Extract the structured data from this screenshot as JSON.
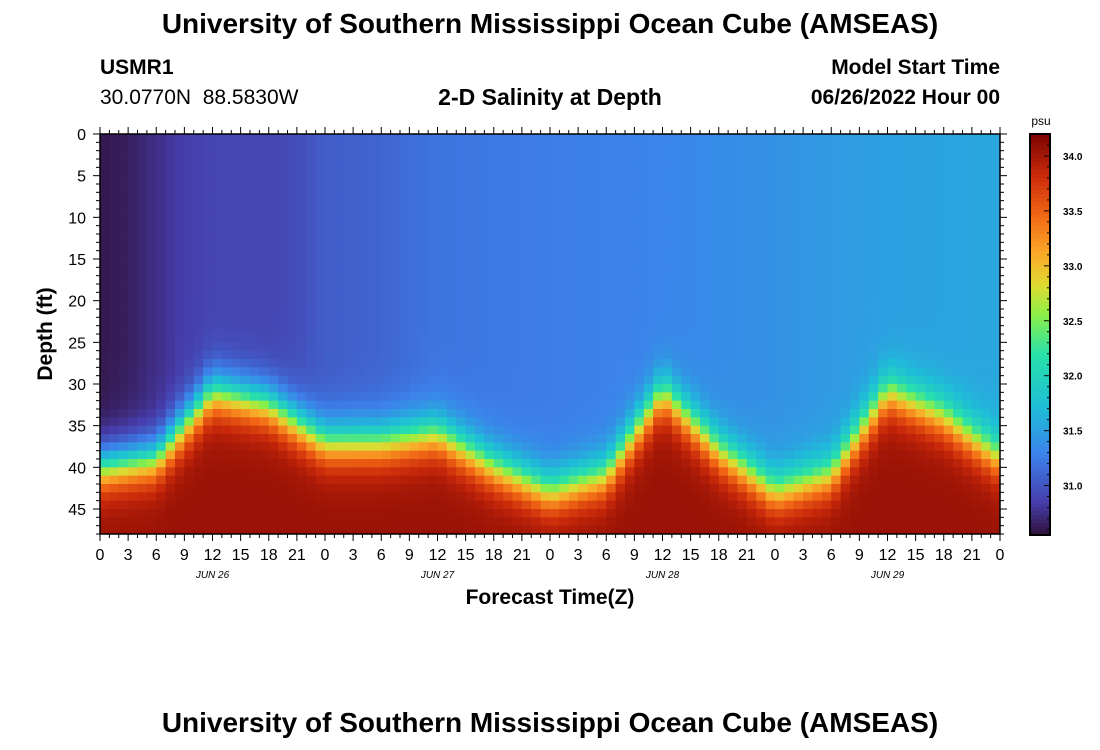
{
  "header": {
    "title": "University of Southern Mississippi Ocean Cube (AMSEAS)",
    "station_id": "USMR1",
    "coords": "30.0770N  88.5830W",
    "subtitle": "2-D Salinity at Depth",
    "model_start_label": "Model Start Time",
    "model_start_value": "06/26/2022 Hour 00"
  },
  "footer": {
    "title": "University of Southern Mississippi Ocean Cube (AMSEAS)"
  },
  "chart_data": {
    "type": "heatmap",
    "title": "2-D Salinity at Depth",
    "xlabel": "Forecast Time(Z)",
    "ylabel": "Depth (ft)",
    "x_range_hours": [
      0,
      96
    ],
    "y_range_ft": [
      0,
      48
    ],
    "x_tick_labels": [
      "0",
      "3",
      "6",
      "9",
      "12",
      "15",
      "18",
      "21",
      "0",
      "3",
      "6",
      "9",
      "12",
      "15",
      "18",
      "21",
      "0",
      "3",
      "6",
      "9",
      "12",
      "15",
      "18",
      "21",
      "0",
      "3",
      "6",
      "9",
      "12",
      "15",
      "18",
      "21",
      "0"
    ],
    "y_ticks": [
      0,
      5,
      10,
      15,
      20,
      25,
      30,
      35,
      40,
      45
    ],
    "date_labels": [
      {
        "label": "JUN 26",
        "hour": 12
      },
      {
        "label": "JUN 27",
        "hour": 36
      },
      {
        "label": "JUN 28",
        "hour": 60
      },
      {
        "label": "JUN 29",
        "hour": 84
      }
    ],
    "colorbar": {
      "unit": "psu",
      "range": [
        30.55,
        34.2
      ],
      "ticks": [
        31.0,
        31.5,
        32.0,
        32.5,
        33.0,
        33.5,
        34.0
      ],
      "tick_labels": [
        "31.0",
        "31.5",
        "32.0",
        "32.5",
        "33.0",
        "33.5",
        "34.0"
      ]
    },
    "upper_layer_salinity": {
      "hours": [
        0,
        3,
        6,
        9,
        12,
        15,
        18,
        21,
        24,
        30,
        36,
        48,
        60,
        72,
        84,
        96
      ],
      "psu": [
        30.6,
        30.65,
        30.75,
        30.85,
        30.9,
        30.9,
        30.9,
        30.95,
        31.05,
        31.1,
        31.2,
        31.25,
        31.3,
        31.4,
        31.5,
        31.55
      ]
    },
    "halocline_depth_ft": {
      "hours": [
        0,
        6,
        12,
        18,
        24,
        30,
        36,
        42,
        48,
        54,
        60,
        66,
        72,
        78,
        84,
        90,
        96
      ],
      "depth": [
        40,
        39,
        31,
        32.5,
        37,
        37,
        36,
        40,
        43,
        41,
        31,
        38,
        43,
        41,
        31,
        34,
        39
      ]
    },
    "bottom_layer_salinity_psu": 34.05
  }
}
